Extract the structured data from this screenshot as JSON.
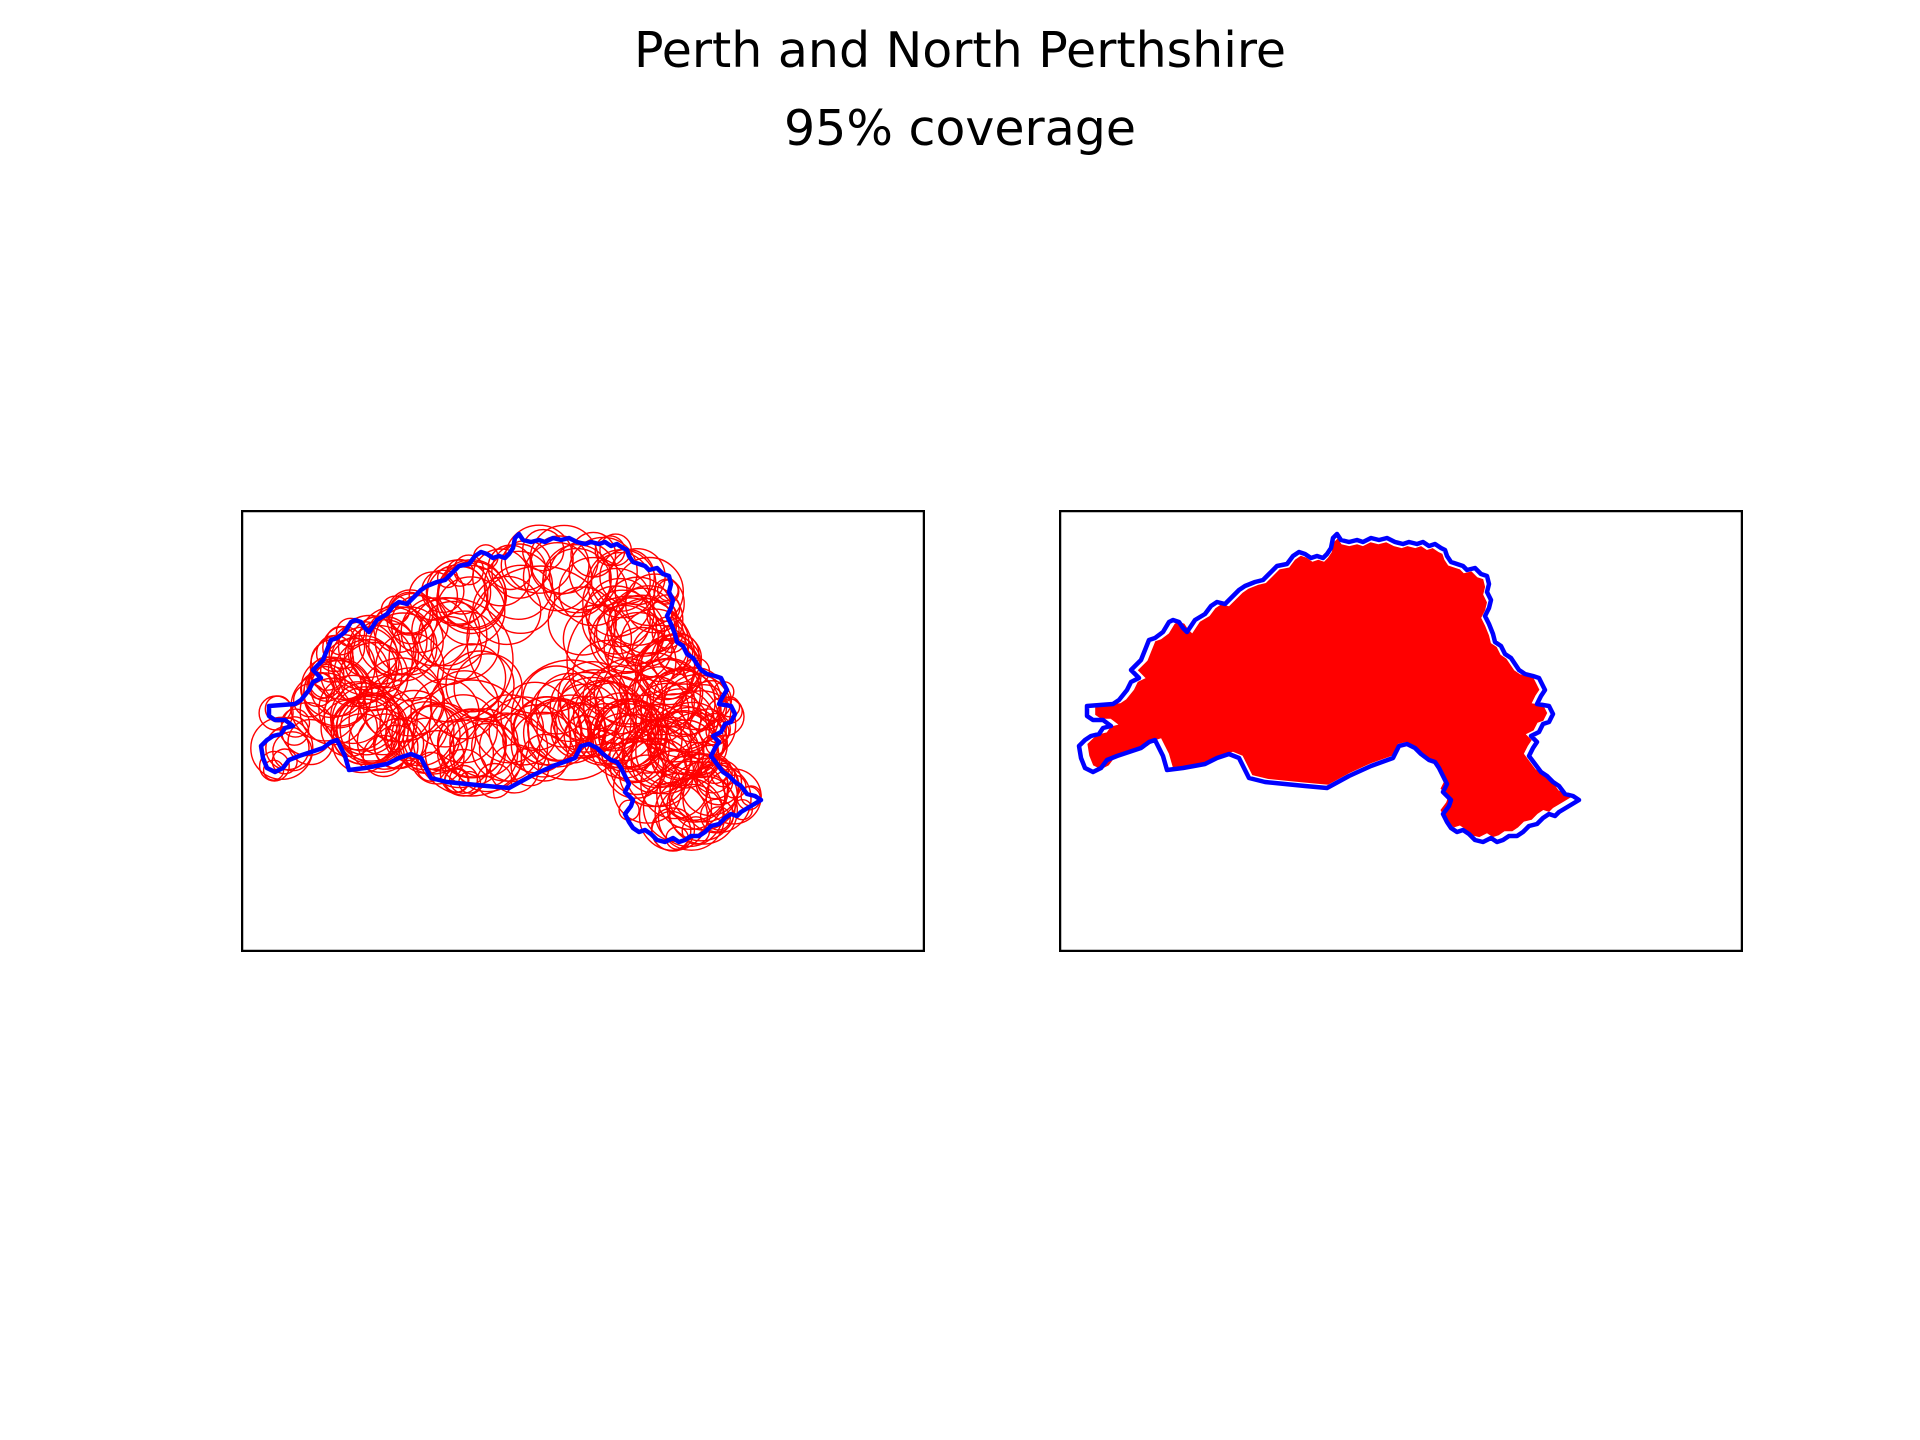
{
  "figure": {
    "title": "Perth and North Perthshire",
    "subtitle": "95% coverage"
  },
  "colors": {
    "boundary": "#0000ff",
    "circles": "#ff0000",
    "coverage_fill": "#ff0000",
    "axes_frame": "#000000",
    "background": "#ffffff"
  },
  "panels": [
    {
      "name": "circle-cover-panel",
      "content": "boundary outline with many overlapping red coverage circles"
    },
    {
      "name": "filled-coverage-panel",
      "content": "boundary outline with solid red covered area"
    }
  ]
}
